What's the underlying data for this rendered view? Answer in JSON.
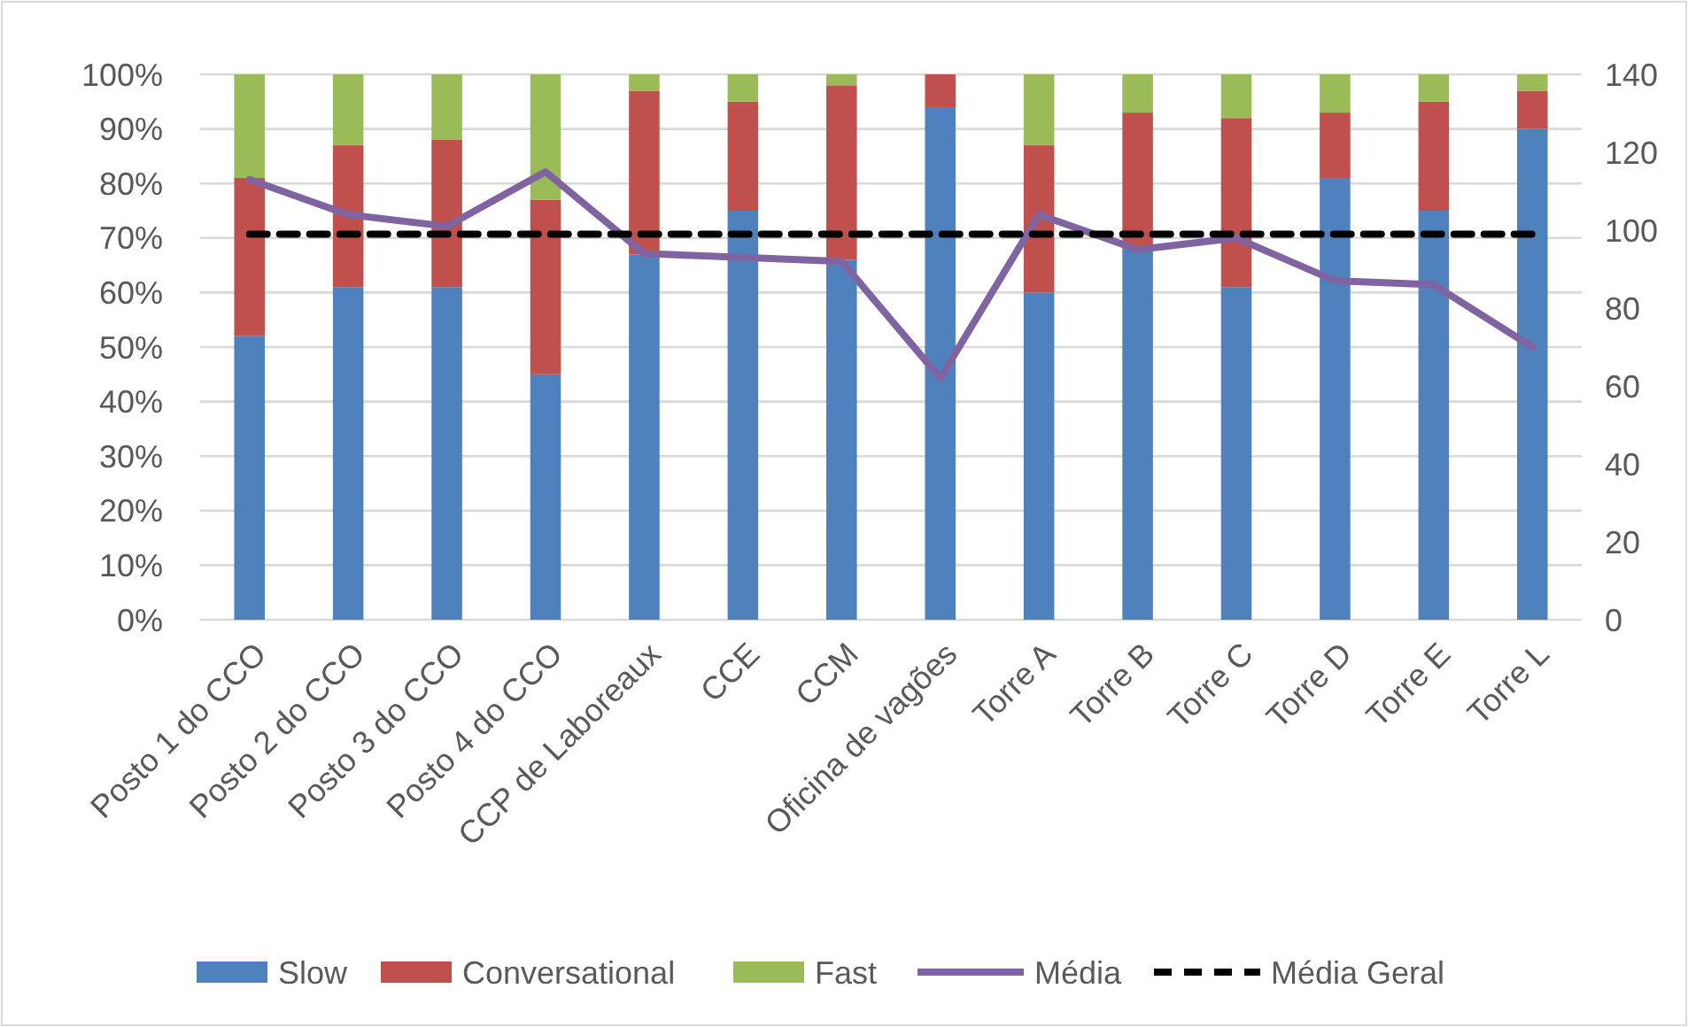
{
  "chart_data": {
    "type": "bar",
    "stacked": true,
    "categories": [
      "Posto 1 do CCO",
      "Posto 2 do CCO",
      "Posto 3 do CCO",
      "Posto 4 do CCO",
      "CCP de Laboreaux",
      "CCE",
      "CCM",
      "Oficina de vagões",
      "Torre A",
      "Torre B",
      "Torre C",
      "Torre D",
      "Torre E",
      "Torre L"
    ],
    "series": [
      {
        "name": "Slow",
        "color": "#4f81bd",
        "values": [
          52,
          61,
          61,
          45,
          67,
          75,
          66,
          94,
          60,
          68,
          61,
          81,
          75,
          90
        ]
      },
      {
        "name": "Conversational",
        "color": "#c0504d",
        "values": [
          29,
          26,
          27,
          32,
          30,
          20,
          32,
          6,
          27,
          25,
          31,
          12,
          20,
          7
        ]
      },
      {
        "name": "Fast",
        "color": "#9bbb59",
        "values": [
          19,
          13,
          12,
          23,
          3,
          5,
          2,
          0,
          13,
          7,
          8,
          7,
          5,
          3
        ]
      },
      {
        "name": "Média",
        "type": "line",
        "axis": "y2",
        "color": "#8064a2",
        "line_style": "solid",
        "values": [
          113,
          104,
          101,
          115,
          94,
          93,
          92,
          62,
          104,
          95,
          98,
          87,
          86,
          70
        ]
      },
      {
        "name": "Média Geral",
        "type": "line",
        "axis": "y2",
        "color": "#000000",
        "line_style": "dashed",
        "values": [
          99,
          99,
          99,
          99,
          99,
          99,
          99,
          99,
          99,
          99,
          99,
          99,
          99,
          99
        ]
      }
    ],
    "ylim": [
      0,
      100
    ],
    "yticks": [
      {
        "value": 0,
        "label": "0%"
      },
      {
        "value": 10,
        "label": "10%"
      },
      {
        "value": 20,
        "label": "20%"
      },
      {
        "value": 30,
        "label": "30%"
      },
      {
        "value": 40,
        "label": "40%"
      },
      {
        "value": 50,
        "label": "50%"
      },
      {
        "value": 60,
        "label": "60%"
      },
      {
        "value": 70,
        "label": "70%"
      },
      {
        "value": 80,
        "label": "80%"
      },
      {
        "value": 90,
        "label": "90%"
      },
      {
        "value": 100,
        "label": "100%"
      }
    ],
    "y2lim": [
      0,
      140
    ],
    "y2ticks": [
      0,
      20,
      40,
      60,
      80,
      100,
      120,
      140
    ],
    "grid": "y",
    "legend": "bottom",
    "marker": "none"
  }
}
